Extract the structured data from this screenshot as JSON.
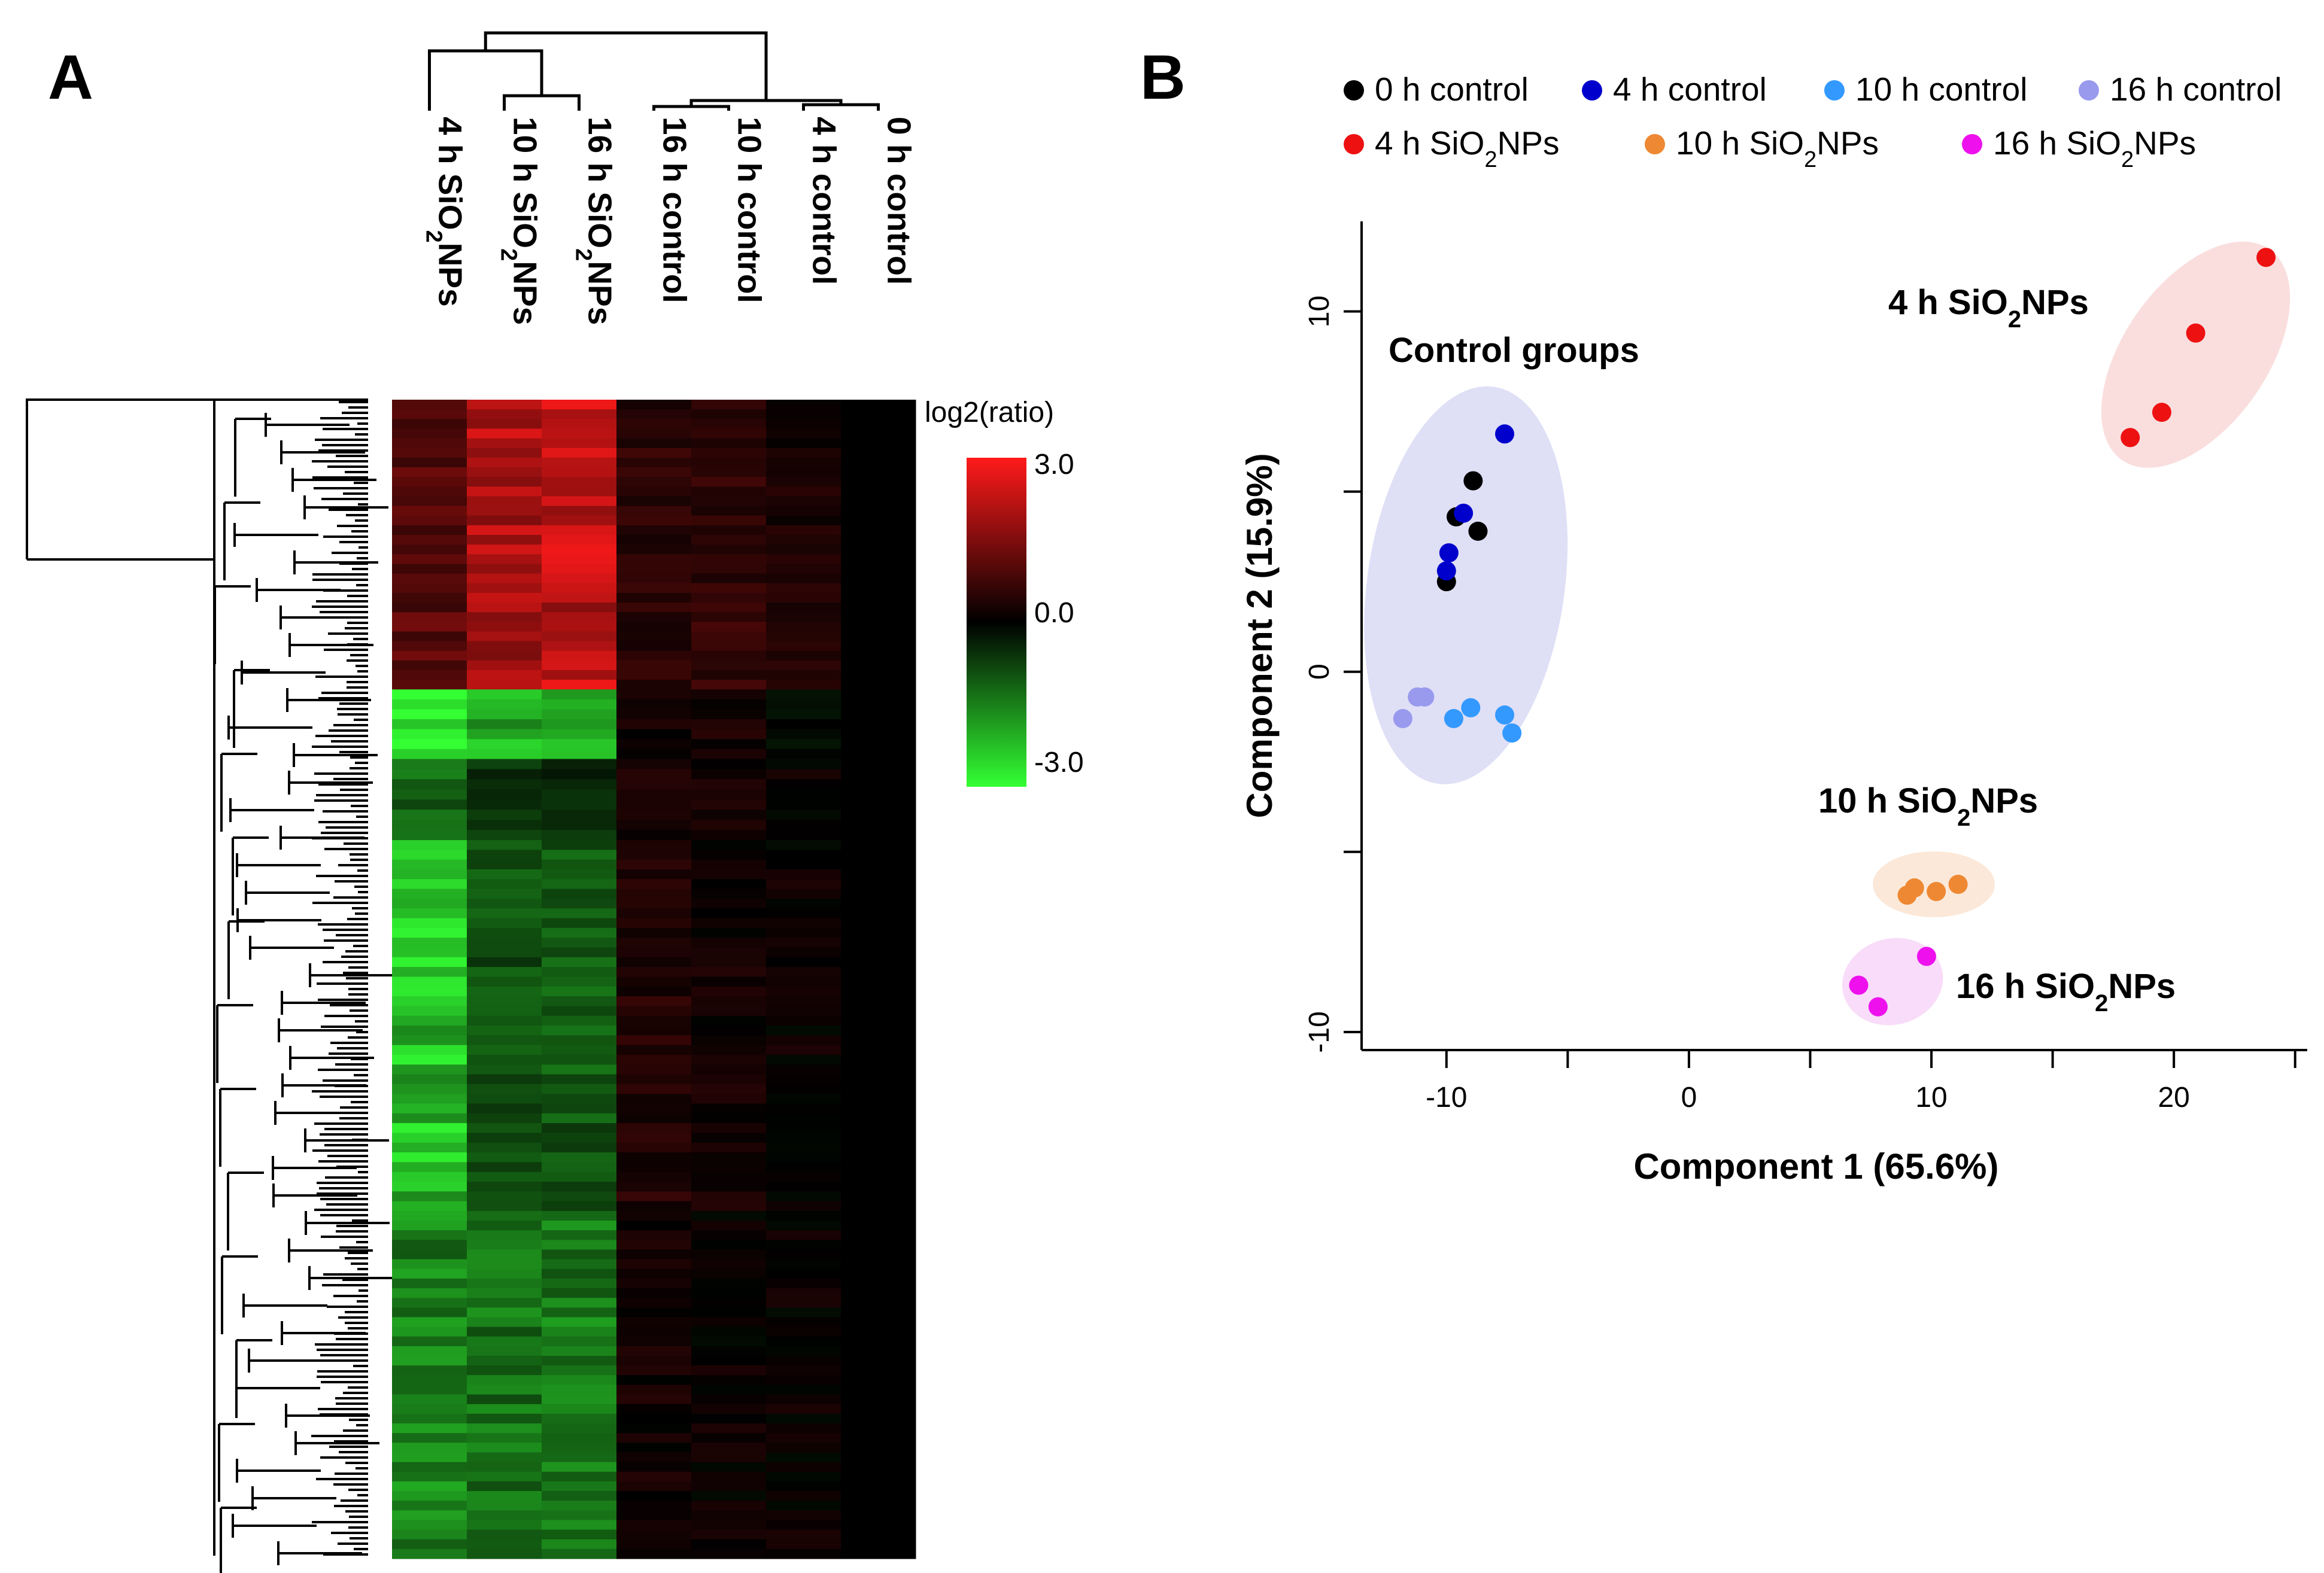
{
  "panel_a": {
    "letter": "A",
    "column_labels": [
      "4 h SiO2NPs",
      "10 h SiO2NPs",
      "16 h SiO2NPs",
      "16 h control",
      "10 h control",
      "4 h control",
      "0 h control"
    ],
    "legend_title": "log2(ratio)",
    "legend_ticks": [
      "3.0",
      "0.0",
      "-3.0"
    ],
    "colors": {
      "high": "#ff1a1a",
      "mid": "#000000",
      "low": "#33ff33"
    }
  },
  "panel_b": {
    "letter": "B",
    "legend": [
      {
        "label": "0 h control",
        "color": "#000000"
      },
      {
        "label": "4 h control",
        "color": "#0000cc"
      },
      {
        "label": "10 h control",
        "color": "#3399ff"
      },
      {
        "label": "16 h control",
        "color": "#9999ee"
      },
      {
        "label": "4 h SiO2NPs",
        "color": "#ee1111"
      },
      {
        "label": "10 h SiO2NPs",
        "color": "#ee8833"
      },
      {
        "label": "16 h SiO2NPs",
        "color": "#ee11ee"
      }
    ],
    "group_labels": [
      "Control groups",
      "4 h SiO2NPs",
      "10 h SiO2NPs",
      "16 h SiO2NPs"
    ]
  },
  "chart_data": [
    {
      "type": "heatmap",
      "title": "",
      "columns": [
        "4 h SiO2NPs",
        "10 h SiO2NPs",
        "16 h SiO2NPs",
        "16 h control",
        "10 h control",
        "4 h control",
        "0 h control"
      ],
      "color_scale": {
        "label": "log2(ratio)",
        "min": -3.0,
        "mid": 0.0,
        "max": 3.0
      },
      "row_blocks": [
        {
          "fraction": 0.25,
          "values": [
            1.0,
            2.0,
            2.2,
            0.5,
            0.6,
            0.3,
            0.0
          ]
        },
        {
          "fraction": 0.06,
          "values": [
            -3.0,
            -2.0,
            -1.8,
            0.2,
            0.3,
            -0.1,
            0.0
          ]
        },
        {
          "fraction": 0.07,
          "values": [
            -1.2,
            -0.6,
            -0.5,
            0.3,
            0.2,
            0.1,
            0.0
          ]
        },
        {
          "fraction": 0.32,
          "values": [
            -2.2,
            -0.9,
            -1.0,
            0.4,
            0.2,
            0.1,
            0.0
          ]
        },
        {
          "fraction": 0.3,
          "values": [
            -1.5,
            -1.3,
            -1.4,
            0.2,
            0.1,
            0.1,
            0.0
          ]
        }
      ]
    },
    {
      "type": "scatter",
      "title": "",
      "xlabel": "Component 1 (65.6%)",
      "ylabel": "Component 2 (15.9%)",
      "xlim": [
        -13.5,
        25.5
      ],
      "ylim": [
        -10.5,
        12.5
      ],
      "xticks": [
        -10,
        0,
        10,
        20
      ],
      "yticks": [
        -10,
        0,
        10
      ],
      "series": [
        {
          "name": "0 h control",
          "color": "#000000",
          "points": [
            [
              -10,
              2.5
            ],
            [
              -9.6,
              4.3
            ],
            [
              -8.9,
              5.3
            ],
            [
              -8.7,
              3.9
            ]
          ]
        },
        {
          "name": "4 h control",
          "color": "#0000cc",
          "points": [
            [
              -7.6,
              6.6
            ],
            [
              -9.9,
              3.3
            ],
            [
              -10,
              2.8
            ],
            [
              -9.3,
              4.4
            ]
          ]
        },
        {
          "name": "10 h control",
          "color": "#3399ff",
          "points": [
            [
              -9.7,
              -1.3
            ],
            [
              -9,
              -1.0
            ],
            [
              -7.6,
              -1.2
            ],
            [
              -7.3,
              -1.7
            ]
          ]
        },
        {
          "name": "16 h control",
          "color": "#9999ee",
          "points": [
            [
              -11.8,
              -1.3
            ],
            [
              -11.2,
              -0.7
            ],
            [
              -10.9,
              -0.7
            ]
          ]
        },
        {
          "name": "4 h SiO2NPs",
          "color": "#ee1111",
          "points": [
            [
              23.8,
              11.5
            ],
            [
              20.9,
              9.4
            ],
            [
              19.5,
              7.2
            ],
            [
              18.2,
              6.5
            ]
          ]
        },
        {
          "name": "10 h SiO2NPs",
          "color": "#ee8833",
          "points": [
            [
              9,
              -6.2
            ],
            [
              9.3,
              -6.0
            ],
            [
              10.2,
              -6.1
            ],
            [
              11.1,
              -5.9
            ]
          ]
        },
        {
          "name": "16 h SiO2NPs",
          "color": "#ee11ee",
          "points": [
            [
              9.8,
              -7.9
            ],
            [
              7,
              -8.7
            ],
            [
              7.8,
              -9.3
            ]
          ]
        }
      ]
    }
  ]
}
